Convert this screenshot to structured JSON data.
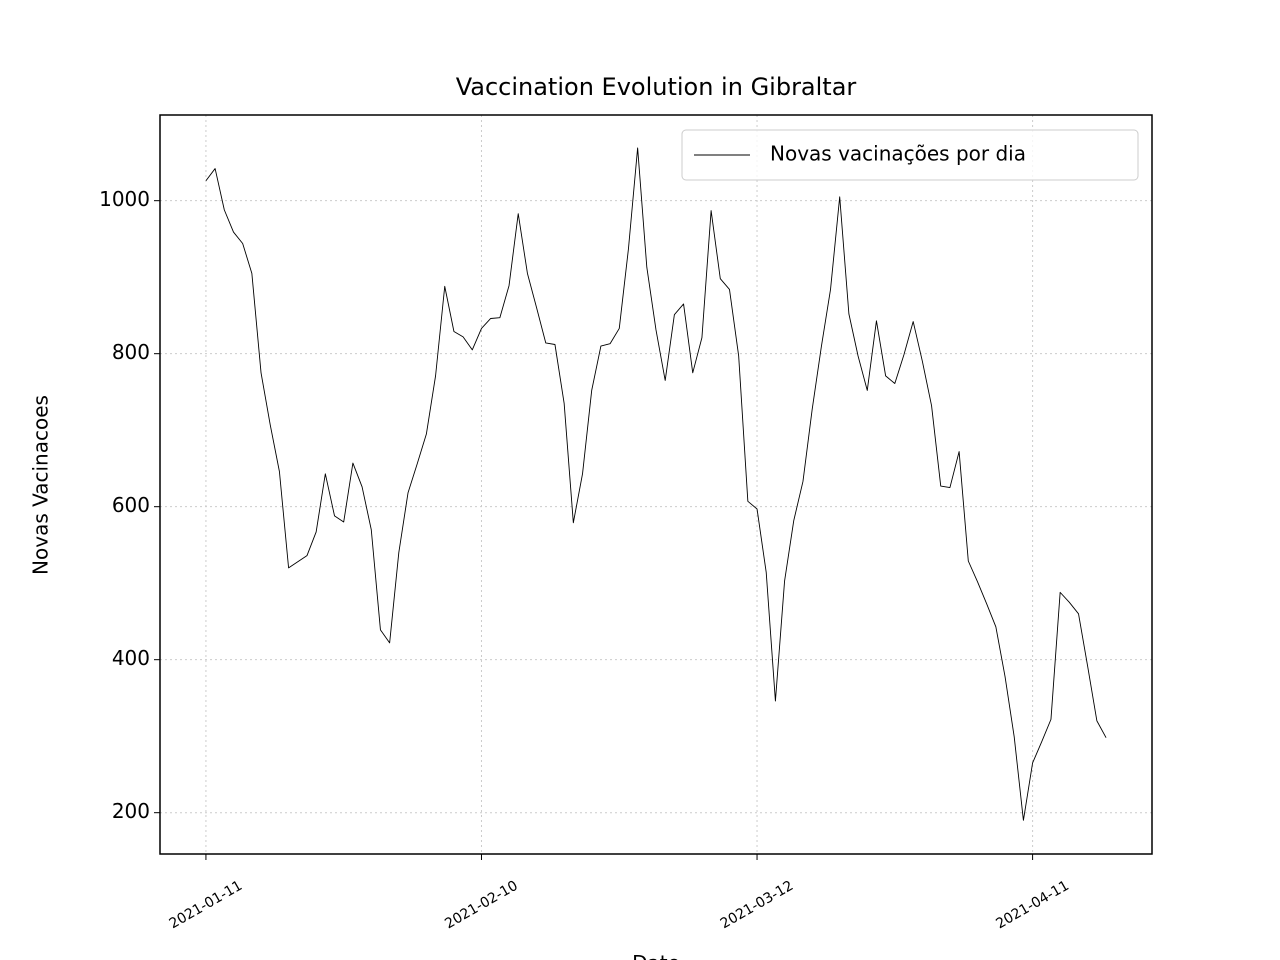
{
  "chart_data": {
    "type": "line",
    "title": "Vaccination Evolution in Gibraltar",
    "xlabel": "Date",
    "ylabel": "Novas Vacinacoes",
    "x": [
      "2021-01-11",
      "2021-01-12",
      "2021-01-13",
      "2021-01-14",
      "2021-01-15",
      "2021-01-16",
      "2021-01-17",
      "2021-01-18",
      "2021-01-19",
      "2021-01-20",
      "2021-01-21",
      "2021-01-22",
      "2021-01-23",
      "2021-01-24",
      "2021-01-25",
      "2021-01-26",
      "2021-01-27",
      "2021-01-28",
      "2021-01-29",
      "2021-01-30",
      "2021-01-31",
      "2021-02-01",
      "2021-02-02",
      "2021-02-03",
      "2021-02-04",
      "2021-02-05",
      "2021-02-06",
      "2021-02-07",
      "2021-02-08",
      "2021-02-09",
      "2021-02-10",
      "2021-02-11",
      "2021-02-12",
      "2021-02-13",
      "2021-02-14",
      "2021-02-15",
      "2021-02-16",
      "2021-02-17",
      "2021-02-18",
      "2021-02-19",
      "2021-02-20",
      "2021-02-21",
      "2021-02-22",
      "2021-02-23",
      "2021-02-24",
      "2021-02-25",
      "2021-02-26",
      "2021-02-27",
      "2021-02-28",
      "2021-03-01",
      "2021-03-02",
      "2021-03-03",
      "2021-03-04",
      "2021-03-05",
      "2021-03-06",
      "2021-03-07",
      "2021-03-08",
      "2021-03-09",
      "2021-03-10",
      "2021-03-11",
      "2021-03-12",
      "2021-03-13",
      "2021-03-14",
      "2021-03-15",
      "2021-03-16",
      "2021-03-17",
      "2021-03-18",
      "2021-03-19",
      "2021-03-20",
      "2021-03-21",
      "2021-03-22",
      "2021-03-23",
      "2021-03-24",
      "2021-03-25",
      "2021-03-26",
      "2021-03-27",
      "2021-03-28",
      "2021-03-29",
      "2021-03-30",
      "2021-03-31",
      "2021-04-01",
      "2021-04-02",
      "2021-04-03",
      "2021-04-04",
      "2021-04-05",
      "2021-04-06",
      "2021-04-07",
      "2021-04-08",
      "2021-04-09",
      "2021-04-10",
      "2021-04-11",
      "2021-04-12",
      "2021-04-13",
      "2021-04-14",
      "2021-04-15",
      "2021-04-16",
      "2021-04-17",
      "2021-04-18",
      "2021-04-19"
    ],
    "series": [
      {
        "name": "Novas vacinações por dia",
        "color": "#000000",
        "values": [
          1026,
          1042,
          988,
          959,
          944,
          905,
          775,
          707,
          646,
          520,
          528,
          536,
          567,
          643,
          588,
          580,
          657,
          626,
          570,
          439,
          422,
          540,
          618,
          656,
          695,
          771,
          888,
          829,
          822,
          805,
          833,
          846,
          847,
          889,
          983,
          905,
          860,
          814,
          812,
          735,
          579,
          643,
          752,
          810,
          813,
          833,
          937,
          1069,
          913,
          831,
          765,
          851,
          865,
          775,
          821,
          987,
          898,
          884,
          797,
          607,
          597,
          514,
          346,
          503,
          582,
          633,
          727,
          809,
          884,
          1005,
          852,
          797,
          752,
          843,
          771,
          761,
          799,
          842,
          790,
          732,
          627,
          625,
          672,
          529,
          502,
          473,
          443,
          378,
          299,
          190,
          265,
          293,
          322,
          488,
          475,
          460,
          391,
          320,
          298
        ]
      }
    ],
    "xlim": [
      "2021-01-06",
      "2021-04-24"
    ],
    "xticks": [
      "2021-01-11",
      "2021-02-10",
      "2021-03-12",
      "2021-04-11"
    ],
    "ylim": [
      146,
      1112
    ],
    "yticks": [
      200,
      400,
      600,
      800,
      1000
    ],
    "grid": true,
    "legend": "upper right"
  }
}
